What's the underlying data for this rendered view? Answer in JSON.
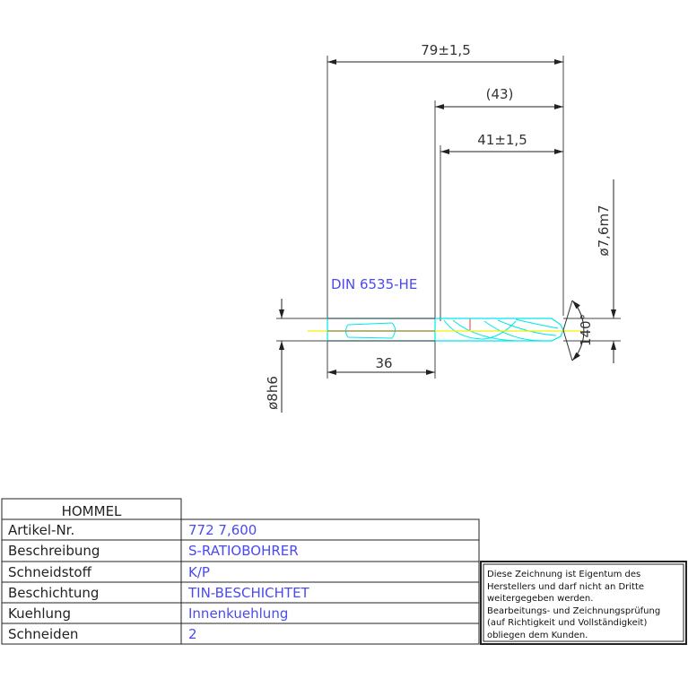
{
  "drawing": {
    "dimensions": {
      "overall_length": "79±1,5",
      "flute_length_ref": "(43)",
      "flute_length": "41±1,5",
      "shank_length": "36",
      "cutting_diameter": "ø7,6m7",
      "shank_diameter": "ø8h6",
      "point_angle": "140°"
    },
    "standard_label": "DIN 6535-HE",
    "colors": {
      "outline": "#00e5ee",
      "center_line": "#f0f000",
      "edge_red": "#ff3030",
      "dimension": "#333333",
      "value_text": "#4a4af0"
    }
  },
  "title_block": {
    "company": "HOMMEL",
    "rows": [
      {
        "label": "Artikel-Nr.",
        "value": "772 7,600"
      },
      {
        "label": "Beschreibung",
        "value": "S-RATIOBOHRER"
      },
      {
        "label": "Schneidstoff",
        "value": "K/P"
      },
      {
        "label": "Beschichtung",
        "value": "TIN-BESCHICHTET"
      },
      {
        "label": "Kuehlung",
        "value": "Innenkuehlung"
      },
      {
        "label": "Schneiden",
        "value": "2"
      }
    ],
    "note_lines": [
      "Diese Zeichnung ist Eigentum des",
      "Herstellers und darf nicht an Dritte",
      "weitergegeben werden.",
      "Bearbeitungs- und Zeichnungsprüfung",
      "(auf Richtigkeit und Vollständigkeit)",
      "obliegen dem Kunden."
    ]
  }
}
